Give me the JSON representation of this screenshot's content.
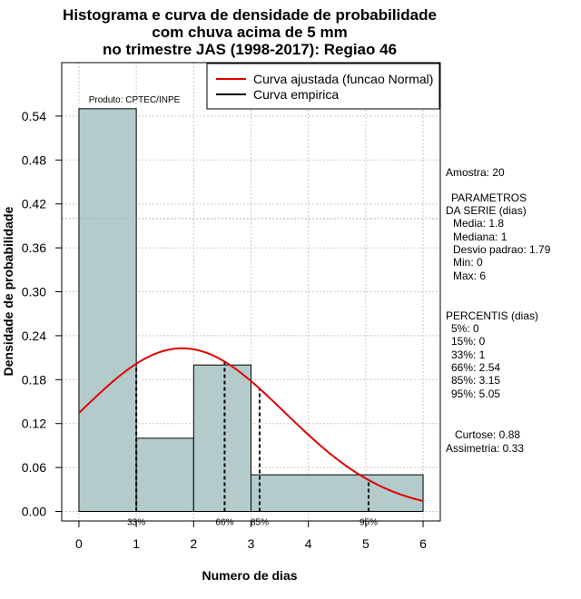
{
  "chart_data": {
    "type": "bar",
    "title_lines": [
      "Histograma e curva de densidade de probabilidade",
      "com chuva acima de 5 mm",
      "no trimestre JAS (1998-2017): Regiao 46"
    ],
    "xlabel": "Numero de dias",
    "ylabel": "Densidade de probabilidade",
    "xlim": [
      -0.3,
      6.3
    ],
    "ylim": [
      -0.013,
      0.613
    ],
    "x_ticks": [
      0,
      1,
      2,
      3,
      4,
      5,
      6
    ],
    "y_ticks": [
      0.0,
      0.06,
      0.12,
      0.18,
      0.24,
      0.3,
      0.36,
      0.42,
      0.48,
      0.54
    ],
    "y_tick_labels": [
      "0.00",
      "0.06",
      "0.12",
      "0.18",
      "0.24",
      "0.30",
      "0.36",
      "0.42",
      "0.48",
      "0.54"
    ],
    "grid": true,
    "hline": 0.4,
    "bins": [
      {
        "x0": 0,
        "x1": 1,
        "density": 0.55
      },
      {
        "x0": 1,
        "x1": 2,
        "density": 0.1
      },
      {
        "x0": 2,
        "x1": 3,
        "density": 0.2
      },
      {
        "x0": 3,
        "x1": 6,
        "density": 0.05
      }
    ],
    "bar_color": "#b3cbcb",
    "normal_curve": {
      "name": "Curva ajustada (funcao Normal)",
      "mean": 1.8,
      "sd": 1.79,
      "x_from": 0,
      "x_to": 6,
      "color": "#e00000"
    },
    "empirical_curve": {
      "name": "Curva empirica",
      "color": "#000000"
    },
    "percentile_markers": [
      {
        "label": "33%",
        "x": 1
      },
      {
        "label": "66%",
        "x": 2.54
      },
      {
        "label": "85%",
        "x": 3.15
      },
      {
        "label": "95%",
        "x": 5.05
      }
    ],
    "legend_position": "top-right",
    "product_label": "Produto: CPTEC/INPE"
  },
  "stats": {
    "amostra": "Amostra: 20",
    "param_header_1": "PARAMETROS",
    "param_header_2": "DA SERIE (dias)",
    "media": "Media: 1.8",
    "mediana": "Mediana: 1",
    "desvio": "Desvio padrao: 1.79",
    "min": "Min: 0",
    "max": "Max: 6",
    "percentis_header": "PERCENTIS (dias)",
    "p5": "5%: 0",
    "p15": "15%: 0",
    "p33": "33%: 1",
    "p66": "66%: 2.54",
    "p85": "85%: 3.15",
    "p95": "95%: 5.05",
    "curtose": "Curtose: 0.88",
    "assimetria": "Assimetria: 0.33"
  }
}
